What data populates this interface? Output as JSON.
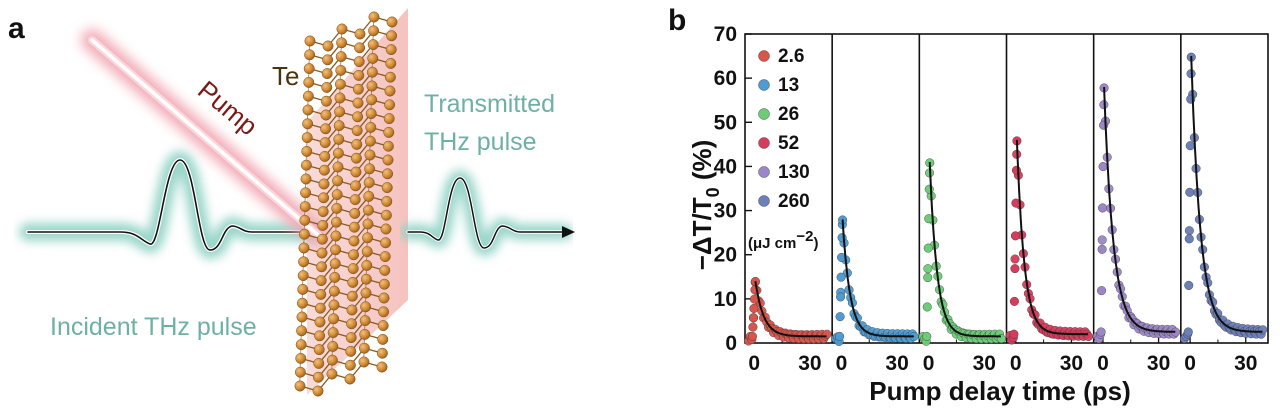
{
  "panel_a": {
    "letter": "a",
    "labels": {
      "pump": "Pump",
      "material": "Te",
      "transmitted_line1": "Transmitted",
      "transmitted_line2": "THz pulse",
      "incident": "Incident THz pulse"
    },
    "colors": {
      "pump_glow": "#f2a7b3",
      "thz_glow": "#8fd1c4",
      "slab": "#f6c7c3",
      "atom": "#d08a36",
      "bond": "#8a5a22"
    }
  },
  "panel_b": {
    "letter": "b",
    "x_label": "Pump delay time (ps)",
    "y_label_parts": {
      "minus_delta": "−ΔT/T",
      "sub": "0",
      "unit": " (%)"
    },
    "legend_unit": {
      "prefix": "(μJ cm",
      "sup": "−2",
      "suffix": ")"
    }
  },
  "chart_data": {
    "type": "scatter",
    "x_label": "Pump delay time (ps)",
    "y_label": "−ΔT/T0 (%)",
    "ylim": [
      0,
      70
    ],
    "y_ticks": [
      0,
      10,
      20,
      30,
      40,
      50,
      60,
      70
    ],
    "xlim": [
      -5,
      42
    ],
    "x_ticks": [
      0,
      30
    ],
    "grid": false,
    "legend_placement": "top-left",
    "legend_unit": "(μJ cm−2)",
    "series": [
      {
        "name": "2.6",
        "color": "#d9544a",
        "peak": 14,
        "tau": 4.5,
        "baseline": 1.5
      },
      {
        "name": "13",
        "color": "#4f9bd2",
        "peak": 28,
        "tau": 4.0,
        "baseline": 1.5
      },
      {
        "name": "26",
        "color": "#6ccc78",
        "peak": 41,
        "tau": 4.0,
        "baseline": 1.5
      },
      {
        "name": "52",
        "color": "#d63c5c",
        "peak": 46,
        "tau": 4.0,
        "baseline": 2.0
      },
      {
        "name": "130",
        "color": "#9c86c8",
        "peak": 58,
        "tau": 5.0,
        "baseline": 2.5
      },
      {
        "name": "260",
        "color": "#6b7fb8",
        "peak": 65,
        "tau": 5.0,
        "baseline": 2.5
      }
    ]
  }
}
